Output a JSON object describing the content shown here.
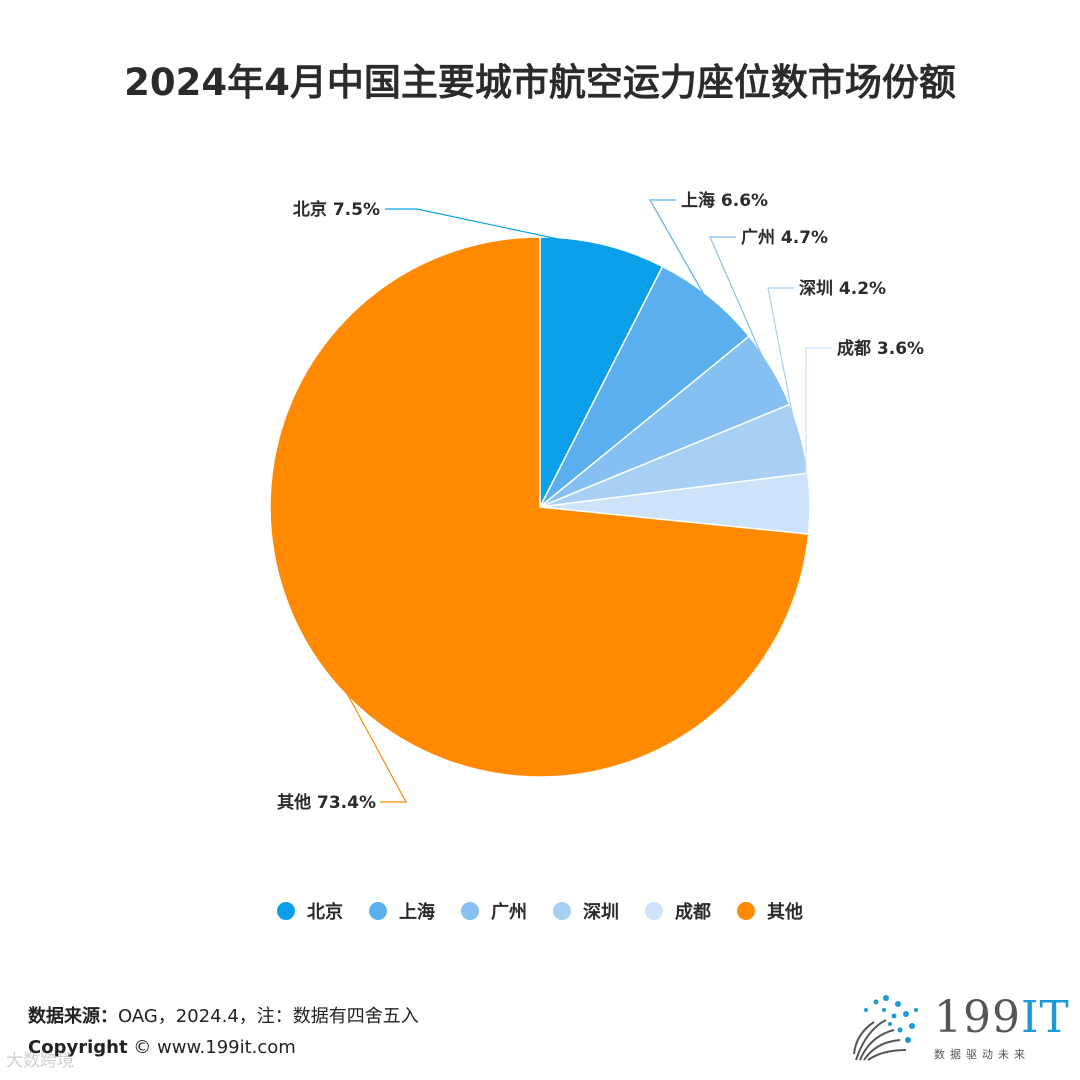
{
  "chart_data": {
    "type": "pie",
    "title": "2024年4月中国主要城市航空运力座位数市场份额",
    "unit": "%",
    "slices": [
      {
        "name": "北京",
        "value": 7.5,
        "label": "北京 7.5%",
        "color": "#0a9fe8"
      },
      {
        "name": "上海",
        "value": 6.6,
        "label": "上海 6.6%",
        "color": "#5aafee"
      },
      {
        "name": "广州",
        "value": 4.7,
        "label": "广州 4.7%",
        "color": "#86bff1"
      },
      {
        "name": "深圳",
        "value": 4.2,
        "label": "深圳 4.2%",
        "color": "#a8d0f5"
      },
      {
        "name": "成都",
        "value": 3.6,
        "label": "成都 3.6%",
        "color": "#cce3f9"
      },
      {
        "name": "其他",
        "value": 73.4,
        "label": "其他 73.4%",
        "color": "#ff8a00"
      }
    ],
    "legend_position": "bottom"
  },
  "footer": {
    "source_label": "数据来源：",
    "source_text": "OAG，2024.4，注：数据有四舍五入",
    "copyright_label": "Copyright",
    "copyright_text": "© www.199it.com",
    "watermark": "大数跨境"
  },
  "logo": {
    "brand_num": "199",
    "brand_it": "IT",
    "tagline": "数据驱动未来"
  }
}
